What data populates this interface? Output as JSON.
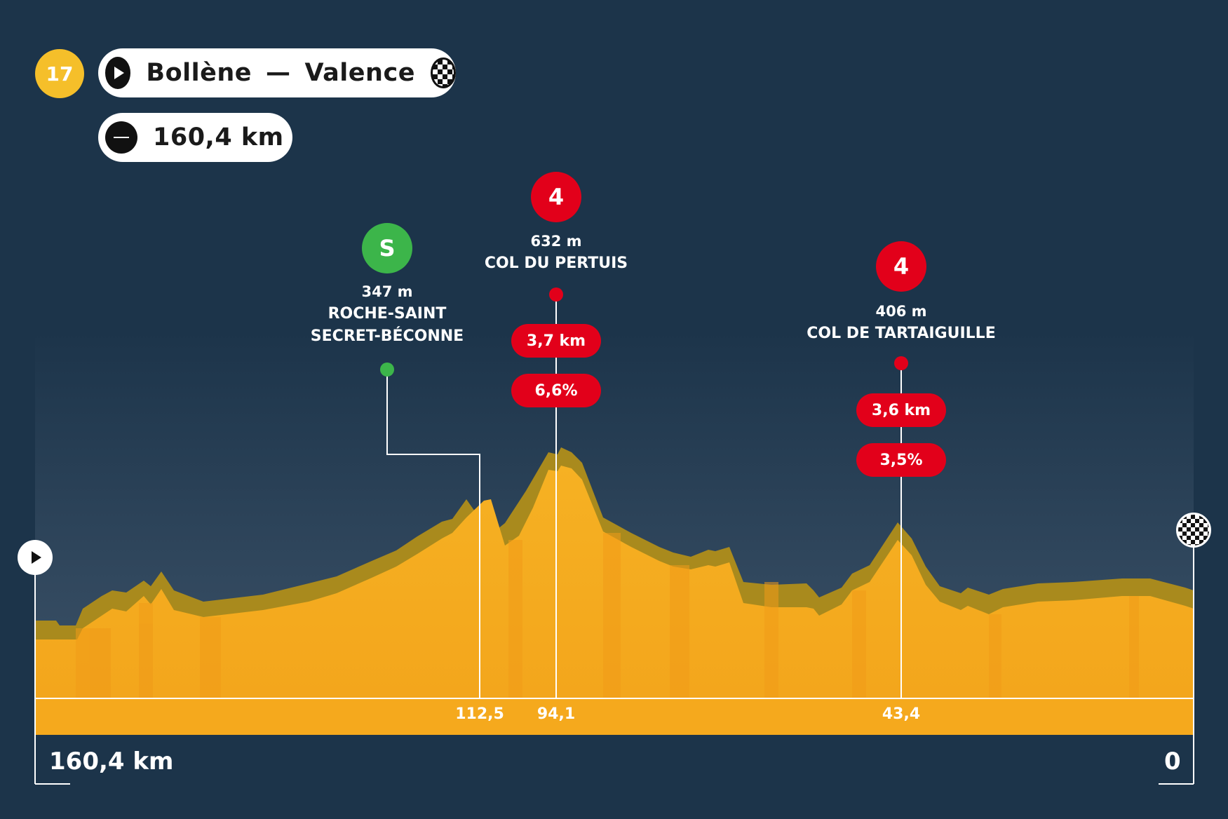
{
  "header": {
    "stage_number": "17",
    "start": "Bollène",
    "separator": "—",
    "finish": "Valence",
    "distance": "160,4 km",
    "start_icon": "play-icon",
    "finish_icon": "checkered-flag-icon",
    "distance_icon": "distance-icon"
  },
  "colors": {
    "background": "#1c344a",
    "profile": "#f5a91d",
    "sprint": "#3cb54a",
    "climb": "#e2001a",
    "stage_badge": "#f5bf2a"
  },
  "axis": {
    "start_label": "160,4 km",
    "end_label": "0"
  },
  "points": [
    {
      "id": "sprint",
      "type": "sprint",
      "badge": "S",
      "altitude": "347 m",
      "name_line1": "ROCHE-SAINT",
      "name_line2": "SECRET-BÉCONNE",
      "km": "112,5"
    },
    {
      "id": "climb1",
      "type": "climb",
      "badge": "4",
      "altitude": "632 m",
      "name_line1": "COL DU PERTUIS",
      "name_line2": "",
      "length": "3,7 km",
      "gradient": "6,6%",
      "km": "94,1"
    },
    {
      "id": "climb2",
      "type": "climb",
      "badge": "4",
      "altitude": "406 m",
      "name_line1": "COL DE TARTAIGUILLE",
      "name_line2": "",
      "length": "3,6 km",
      "gradient": "3,5%",
      "km": "43,4"
    }
  ]
}
